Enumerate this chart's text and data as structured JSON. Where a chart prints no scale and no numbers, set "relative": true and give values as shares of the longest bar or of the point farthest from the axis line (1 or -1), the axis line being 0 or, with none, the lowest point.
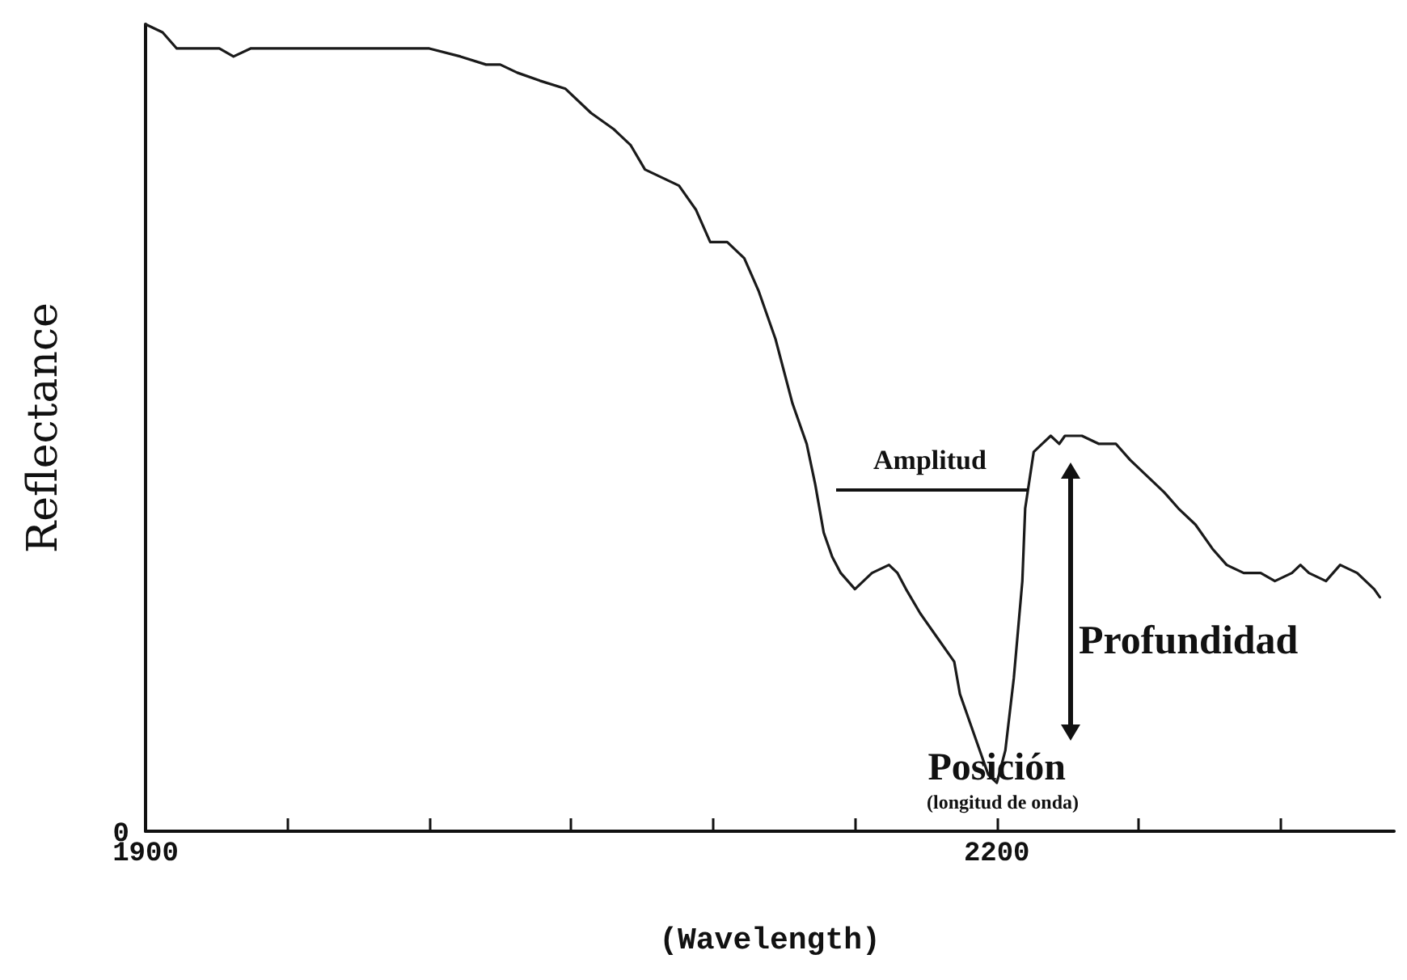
{
  "chart_data": {
    "type": "line",
    "relative": true,
    "xlabel": "(Wavelength)",
    "ylabel": "Reflectance",
    "xlim": [
      1900,
      2340
    ],
    "xticks": [
      1900,
      {
        "value": 1950,
        "label": null
      },
      {
        "value": 2000,
        "label": null
      },
      {
        "value": 2050,
        "label": null
      },
      {
        "value": 2100,
        "label": null
      },
      {
        "value": 2150,
        "label": null
      },
      2200,
      {
        "value": 2250,
        "label": null
      },
      {
        "value": 2300,
        "label": null
      }
    ],
    "x": [
      1900,
      1906,
      1911,
      1917,
      1922,
      1926,
      1931,
      1937,
      1946,
      1963,
      1980,
      1991,
      2000,
      2011,
      2020,
      2025,
      2031,
      2039,
      2048,
      2057,
      2065,
      2071,
      2076,
      2082,
      2088,
      2094,
      2099,
      2105,
      2111,
      2116,
      2122,
      2128,
      2133,
      2136,
      2139,
      2142,
      2145,
      2150,
      2156,
      2162,
      2165,
      2168,
      2173,
      2179,
      2185,
      2187,
      2193,
      2197,
      2200,
      2203,
      2206,
      2209,
      2210,
      2213,
      2216,
      2219,
      2222,
      2224,
      2230,
      2236,
      2242,
      2247,
      2253,
      2259,
      2264,
      2270,
      2276,
      2281,
      2287,
      2293,
      2298,
      2304,
      2307,
      2310,
      2316,
      2321,
      2327,
      2333,
      2335
    ],
    "series": [
      {
        "color": "#1a1a1a",
        "values": [
          1.0,
          0.99,
          0.97,
          0.97,
          0.97,
          0.97,
          0.96,
          0.97,
          0.97,
          0.97,
          0.97,
          0.97,
          0.97,
          0.96,
          0.95,
          0.95,
          0.94,
          0.93,
          0.92,
          0.89,
          0.87,
          0.85,
          0.82,
          0.81,
          0.8,
          0.77,
          0.73,
          0.73,
          0.71,
          0.67,
          0.61,
          0.53,
          0.48,
          0.43,
          0.37,
          0.34,
          0.32,
          0.3,
          0.32,
          0.33,
          0.32,
          0.3,
          0.27,
          0.24,
          0.21,
          0.17,
          0.11,
          0.07,
          0.06,
          0.1,
          0.19,
          0.31,
          0.4,
          0.47,
          0.48,
          0.49,
          0.48,
          0.49,
          0.49,
          0.48,
          0.48,
          0.46,
          0.44,
          0.42,
          0.4,
          0.38,
          0.35,
          0.33,
          0.32,
          0.32,
          0.31,
          0.32,
          0.33,
          0.32,
          0.31,
          0.33,
          0.32,
          0.3,
          0.29
        ]
      }
    ],
    "annotations": [
      "Amplitud",
      "Profundidad",
      {
        "text": "Posición",
        "x": 2200,
        "y": 0.06
      },
      "(longitud de onda)",
      "0"
    ],
    "marker": "none",
    "line_style": "solid",
    "grid": false
  }
}
